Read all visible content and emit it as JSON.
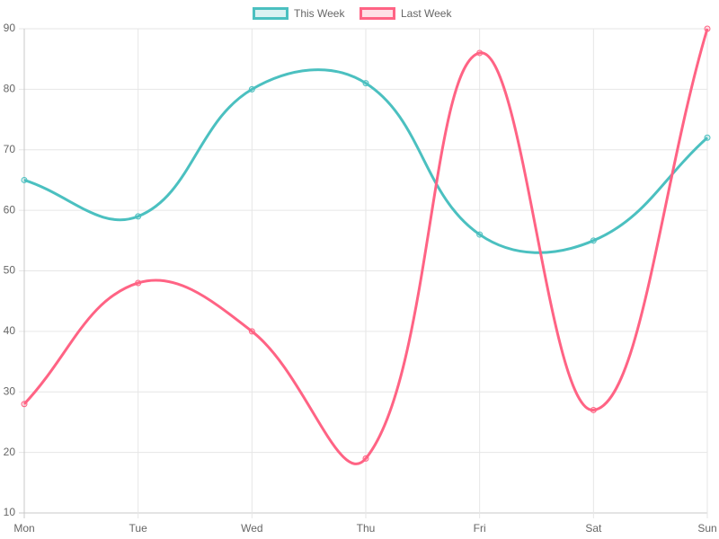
{
  "chart_data": {
    "type": "line",
    "categories": [
      "Mon",
      "Tue",
      "Wed",
      "Thu",
      "Fri",
      "Sat",
      "Sun"
    ],
    "series": [
      {
        "name": "This Week",
        "color": "#4bc0c0",
        "values": [
          65,
          59,
          80,
          81,
          56,
          55,
          72
        ]
      },
      {
        "name": "Last Week",
        "color": "#ff6384",
        "values": [
          28,
          48,
          40,
          19,
          86,
          27,
          90
        ]
      }
    ],
    "ylim": [
      10,
      90
    ],
    "yticks": [
      10,
      20,
      30,
      40,
      50,
      60,
      70,
      80,
      90
    ],
    "grid": true,
    "legend": "top",
    "smooth": true
  }
}
